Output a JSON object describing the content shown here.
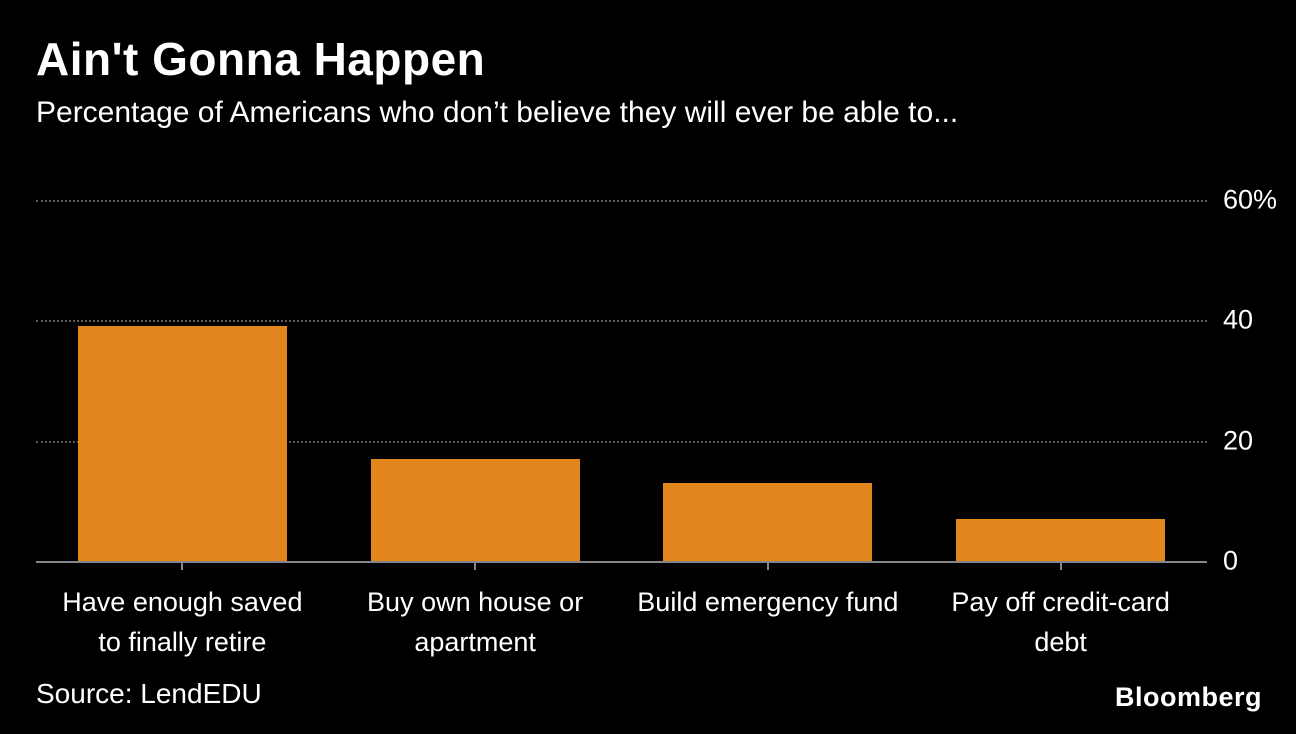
{
  "header": {
    "title": "Ain't Gonna Happen",
    "subtitle": "Percentage of Americans who don’t believe they will ever be able to..."
  },
  "chart_data": {
    "type": "bar",
    "title": "Ain't Gonna Happen",
    "subtitle": "Percentage of Americans who don’t believe they will ever be able to...",
    "categories": [
      "Have enough saved to finally retire",
      "Buy own house or apartment",
      "Build emergency fund",
      "Pay off credit-card debt"
    ],
    "values": [
      39,
      17,
      13,
      7
    ],
    "x_label_lines": [
      [
        "Have enough saved",
        "to finally retire"
      ],
      [
        "Buy own house or",
        "apartment"
      ],
      [
        "Build emergency fund"
      ],
      [
        "Pay off credit-card",
        "debt"
      ]
    ],
    "xlabel": "",
    "ylabel": "",
    "ylim": [
      0,
      60
    ],
    "yticks": [
      {
        "value": 0,
        "label": "0"
      },
      {
        "value": 20,
        "label": "20"
      },
      {
        "value": 40,
        "label": "40"
      },
      {
        "value": 60,
        "label": "60%"
      }
    ],
    "bar_color": "#E0861D",
    "background_color": "#000000",
    "grid": "horizontal dotted",
    "legend": "none",
    "y_axis_side": "right"
  },
  "footer": {
    "source": "Source: LendEDU",
    "brand": "Bloomberg"
  }
}
